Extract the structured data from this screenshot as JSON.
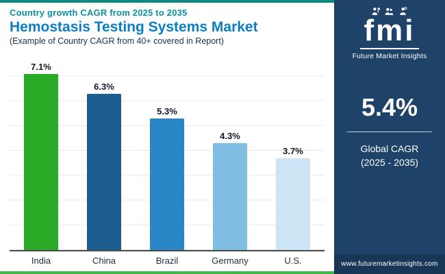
{
  "header": {
    "eyebrow": "Country growth CAGR from 2025 to 2035",
    "title": "Hemostasis Testing Systems Market",
    "subtitle": "(Example of Country CAGR from 40+ covered in Report)"
  },
  "chart_data": {
    "type": "bar",
    "title": "Hemostasis Testing Systems Market",
    "categories": [
      "India",
      "China",
      "Brazil",
      "Germany",
      "U.S."
    ],
    "values": [
      7.1,
      6.3,
      5.3,
      4.3,
      3.7
    ],
    "value_labels": [
      "7.1%",
      "6.3%",
      "5.3%",
      "4.3%",
      "3.7%"
    ],
    "bar_colors": [
      "#2baa28",
      "#1d5e90",
      "#2b86c8",
      "#7fbde2",
      "#cde4f4"
    ],
    "ylim": [
      0,
      8
    ],
    "grid": true,
    "xlabel": "",
    "ylabel": ""
  },
  "sidebar": {
    "logo_text": "fmi",
    "logo_caption": "Future Market Insights",
    "stat_value": "5.4%",
    "stat_label_1": "Global CAGR",
    "stat_label_2": "(2025 - 2035)",
    "website": "www.futuremarketinsights.com",
    "bg_color": "#1e4268"
  },
  "colors": {
    "accent_top": "#12877f",
    "accent_bottom": "#3fb54a",
    "eyebrow": "#0a8fa3",
    "title": "#0d7dc2",
    "panel_bg": "#1e4268"
  }
}
